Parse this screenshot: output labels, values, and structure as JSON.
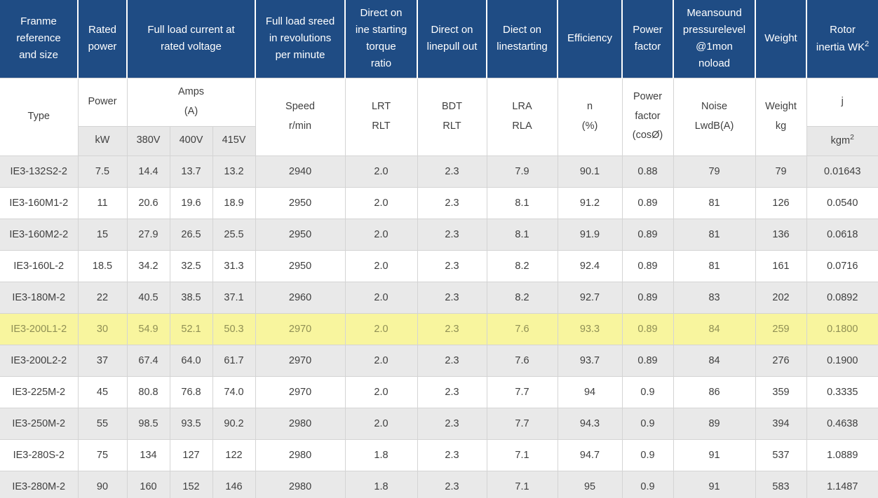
{
  "colors": {
    "header_bg": "#1f4c84",
    "header_text": "#ffffff",
    "body_text": "#3f3f3f",
    "alt_row_bg": "#e9e9e9",
    "subheader_gray_bg": "#e8e8e8",
    "highlight_bg": "#f8f59e",
    "highlight_text": "#8f8f55",
    "border_color": "#d4d4d4"
  },
  "table": {
    "main_header": {
      "frame": "Franme\nreference\nand size",
      "rated_power": "Rated\npower",
      "full_load_current": "Full load current at\nrated voltage",
      "full_load_speed": "Full load sreed\nin revolutions\nper minute",
      "dol_starting_torque": "Direct on\nine starting\ntorque\nratio",
      "dol_pull_out": "Direct on\nlinepull out",
      "dol_starting": "Diect on\nlinestarting",
      "efficiency": "Efficiency",
      "power_factor": "Power\nfactor",
      "sound_pressure": "Meansound\npressurelevel\n@1mon\nnoload",
      "weight": "Weight",
      "rotor_inertia_base": "Rotor\ninertia WK",
      "rotor_inertia_sup": "2"
    },
    "sub_header": {
      "type": "Type",
      "power": "Power",
      "amps": "Amps\n(A)",
      "speed": "Speed\nr/min",
      "lrt": "LRT\nRLT",
      "bdt": "BDT\nRLT",
      "lra": "LRA\nRLA",
      "eff": "n\n(%)",
      "pf": "Power\nfactor\n(cosØ)",
      "noise": "Noise\nLwdB(A)",
      "weight": "Weight\nkg",
      "j": "j",
      "kw": "kW",
      "v380": "380V",
      "v400": "400V",
      "v415": "415V",
      "kgm_base": "kgm",
      "kgm_sup": "2"
    },
    "highlighted_row_index": 5,
    "rows": [
      [
        "IE3-132S2-2",
        "7.5",
        "14.4",
        "13.7",
        "13.2",
        "2940",
        "2.0",
        "2.3",
        "7.9",
        "90.1",
        "0.88",
        "79",
        "79",
        "0.01643"
      ],
      [
        "IE3-160M1-2",
        "11",
        "20.6",
        "19.6",
        "18.9",
        "2950",
        "2.0",
        "2.3",
        "8.1",
        "91.2",
        "0.89",
        "81",
        "126",
        "0.0540"
      ],
      [
        "IE3-160M2-2",
        "15",
        "27.9",
        "26.5",
        "25.5",
        "2950",
        "2.0",
        "2.3",
        "8.1",
        "91.9",
        "0.89",
        "81",
        "136",
        "0.0618"
      ],
      [
        "IE3-160L-2",
        "18.5",
        "34.2",
        "32.5",
        "31.3",
        "2950",
        "2.0",
        "2.3",
        "8.2",
        "92.4",
        "0.89",
        "81",
        "161",
        "0.0716"
      ],
      [
        "IE3-180M-2",
        "22",
        "40.5",
        "38.5",
        "37.1",
        "2960",
        "2.0",
        "2.3",
        "8.2",
        "92.7",
        "0.89",
        "83",
        "202",
        "0.0892"
      ],
      [
        "IE3-200L1-2",
        "30",
        "54.9",
        "52.1",
        "50.3",
        "2970",
        "2.0",
        "2.3",
        "7.6",
        "93.3",
        "0.89",
        "84",
        "259",
        "0.1800"
      ],
      [
        "IE3-200L2-2",
        "37",
        "67.4",
        "64.0",
        "61.7",
        "2970",
        "2.0",
        "2.3",
        "7.6",
        "93.7",
        "0.89",
        "84",
        "276",
        "0.1900"
      ],
      [
        "IE3-225M-2",
        "45",
        "80.8",
        "76.8",
        "74.0",
        "2970",
        "2.0",
        "2.3",
        "7.7",
        "94",
        "0.9",
        "86",
        "359",
        "0.3335"
      ],
      [
        "IE3-250M-2",
        "55",
        "98.5",
        "93.5",
        "90.2",
        "2980",
        "2.0",
        "2.3",
        "7.7",
        "94.3",
        "0.9",
        "89",
        "394",
        "0.4638"
      ],
      [
        "IE3-280S-2",
        "75",
        "134",
        "127",
        "122",
        "2980",
        "1.8",
        "2.3",
        "7.1",
        "94.7",
        "0.9",
        "91",
        "537",
        "1.0889"
      ],
      [
        "IE3-280M-2",
        "90",
        "160",
        "152",
        "146",
        "2980",
        "1.8",
        "2.3",
        "7.1",
        "95",
        "0.9",
        "91",
        "583",
        "1.1487"
      ]
    ]
  }
}
